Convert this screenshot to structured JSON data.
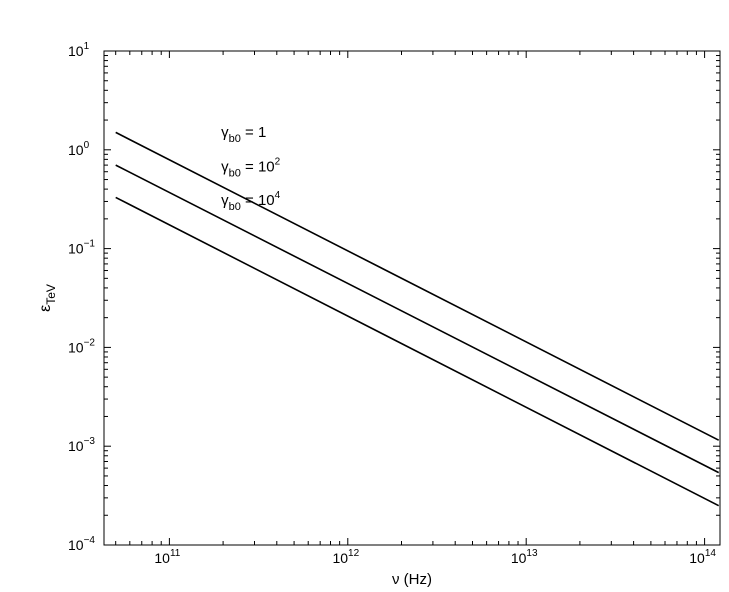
{
  "chart_data": {
    "type": "line",
    "title": "",
    "xlabel": "ν (Hz)",
    "ylabel_main": "ε",
    "ylabel_sub": "TeV",
    "x_scale": "log",
    "y_scale": "log",
    "xlim": [
      43000000000.0,
      122000000000000.0
    ],
    "ylim": [
      0.0001,
      10
    ],
    "x_ticks": [
      {
        "value": 100000000000.0,
        "base": "10",
        "exp": "11"
      },
      {
        "value": 1000000000000.0,
        "base": "10",
        "exp": "12"
      },
      {
        "value": 10000000000000.0,
        "base": "10",
        "exp": "13"
      },
      {
        "value": 100000000000000.0,
        "base": "10",
        "exp": "14"
      }
    ],
    "y_ticks": [
      {
        "value": 0.0001,
        "base": "10",
        "exp": "−4"
      },
      {
        "value": 0.001,
        "base": "10",
        "exp": "−3"
      },
      {
        "value": 0.01,
        "base": "10",
        "exp": "−2"
      },
      {
        "value": 0.1,
        "base": "10",
        "exp": "−1"
      },
      {
        "value": 1,
        "base": "10",
        "exp": "0"
      },
      {
        "value": 10,
        "base": "10",
        "exp": "1"
      }
    ],
    "grid": false,
    "legend": "none",
    "line_color": "#000000",
    "series": [
      {
        "x": [
          50000000000.0,
          120000000000000.0
        ],
        "y": [
          1.5,
          0.00115
        ],
        "label": {
          "sym": "γ",
          "sub": "b0",
          "eq": " = 1",
          "exp": "",
          "x": 195000000000.0,
          "y": 1.35
        }
      },
      {
        "x": [
          50000000000.0,
          120000000000000.0
        ],
        "y": [
          0.7,
          0.00054
        ],
        "label": {
          "sym": "γ",
          "sub": "b0",
          "eq": " = 10",
          "exp": "2",
          "x": 195000000000.0,
          "y": 0.6
        }
      },
      {
        "x": [
          50000000000.0,
          120000000000000.0
        ],
        "y": [
          0.33,
          0.00025
        ],
        "label": {
          "sym": "γ",
          "sub": "b0",
          "eq": " = 10",
          "exp": "4",
          "x": 195000000000.0,
          "y": 0.275
        }
      }
    ]
  }
}
